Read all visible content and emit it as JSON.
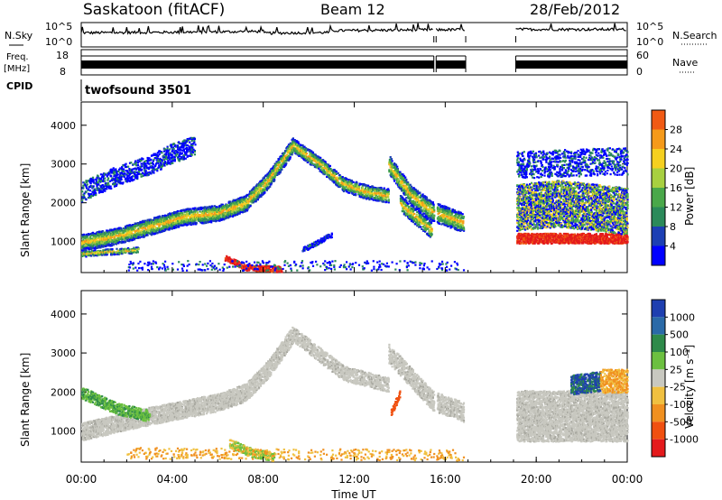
{
  "header": {
    "station": "Saskatoon (fitACF)",
    "beam": "Beam 12",
    "date": "28/Feb/2012"
  },
  "top_panels": {
    "nsky_label": "N.Sky",
    "nsky_ticks": [
      "10^5",
      "10^0"
    ],
    "nsearch_label": "N.Search",
    "nsearch_ticks": [
      "10^5",
      "10^0"
    ],
    "freq_label_1": "Freq.",
    "freq_label_2": "[MHz]",
    "freq_ticks": [
      "18",
      "8"
    ],
    "nave_label": "Nave",
    "nave_ticks": [
      "60",
      "0"
    ],
    "cpid_label": "CPID",
    "cpid_value": "twofsound 3501",
    "data_gaps_hours": [
      [
        16.9,
        19.1
      ]
    ],
    "minor_gaps_hours": [
      [
        15.5,
        15.6
      ]
    ]
  },
  "chart_data": [
    {
      "type": "heatmap",
      "name": "power-panel",
      "ylabel": "Slant Range [km]",
      "ylim": [
        200,
        4600
      ],
      "yticks": [
        "1000",
        "2000",
        "3000",
        "4000"
      ],
      "colorbar": {
        "label": "Power [dB]",
        "ticks": [
          "4",
          "8",
          "12",
          "16",
          "20",
          "24",
          "28"
        ],
        "colors": [
          "#0000ff",
          "#1c3fb4",
          "#2b8a5a",
          "#4aa84a",
          "#a8d040",
          "#f5d020",
          "#f59a1a",
          "#f05a14",
          "#e41a1c"
        ]
      }
    },
    {
      "type": "heatmap",
      "name": "velocity-panel",
      "ylabel": "Slant Range [km]",
      "ylim": [
        200,
        4600
      ],
      "yticks": [
        "1000",
        "2000",
        "3000",
        "4000"
      ],
      "colorbar": {
        "label": "Velocity [m s⁻¹]",
        "ticks": [
          "1000",
          "500",
          "100",
          "25",
          "-25",
          "-100",
          "-500",
          "-1000"
        ],
        "colors": [
          "#1e3fb0",
          "#2a6aa8",
          "#2e8a4a",
          "#6cc040",
          "#c8c8c0",
          "#f0c040",
          "#f09020",
          "#f05010",
          "#e41a1c"
        ]
      }
    }
  ],
  "xaxis": {
    "label": "Time UT",
    "ticks": [
      "00:00",
      "04:00",
      "08:00",
      "12:00",
      "16:00",
      "20:00",
      "00:00"
    ]
  }
}
